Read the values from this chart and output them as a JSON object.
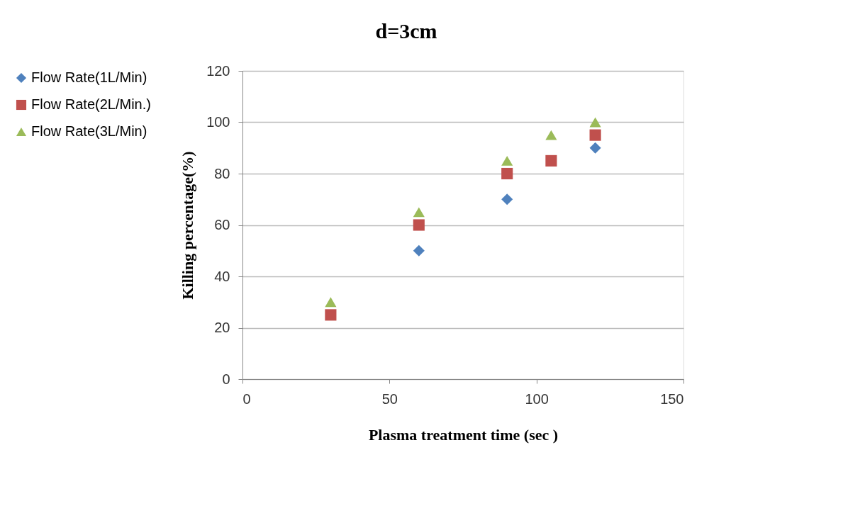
{
  "chart_data": {
    "type": "scatter",
    "title": "d=3cm",
    "xlabel": "Plasma treatment time (sec )",
    "ylabel": "Killing percentage(%)",
    "x": [
      30,
      60,
      90,
      105,
      120
    ],
    "series": [
      {
        "name": "Flow Rate(1L/Min)",
        "color": "#4f81bd",
        "marker": "diamond",
        "values": [
          null,
          50,
          70,
          null,
          90
        ]
      },
      {
        "name": "Flow Rate(2L/Min.)",
        "color": "#c0504d",
        "marker": "square",
        "values": [
          25,
          60,
          80,
          85,
          95
        ]
      },
      {
        "name": "Flow Rate(3L/Min)",
        "color": "#9bbb59",
        "marker": "triangle",
        "values": [
          30,
          65,
          85,
          95,
          100
        ]
      }
    ],
    "xlim": [
      0,
      150
    ],
    "xticks": [
      0,
      50,
      100,
      150
    ],
    "ylim": [
      0,
      120
    ],
    "yticks": [
      0,
      20,
      40,
      60,
      80,
      100,
      120
    ],
    "grid": "y",
    "legend": "left"
  }
}
